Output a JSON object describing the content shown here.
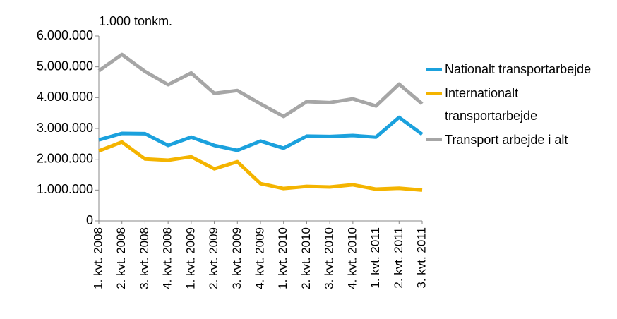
{
  "chart_data": {
    "type": "line",
    "y_axis_label": "1.000 tonkm.",
    "categories": [
      "1. kvt. 2008",
      "2. kvt. 2008",
      "3. kvt. 2008",
      "4. kvt. 2008",
      "1. kvt. 2009",
      "2. kvt. 2009",
      "3. kvt. 2009",
      "4. kvt. 2009",
      "1. kvt. 2010",
      "2. kvt. 2010",
      "3. kvt. 2010",
      "4. kvt. 2010",
      "1. kvt. 2011",
      "2. kvt. 2011",
      "3. kvt. 2011"
    ],
    "series": [
      {
        "name": "Nationalt transportarbejde",
        "color": "#1ba1dd",
        "values": [
          2630000,
          2840000,
          2830000,
          2450000,
          2720000,
          2450000,
          2290000,
          2590000,
          2360000,
          2750000,
          2740000,
          2770000,
          2720000,
          3360000,
          2810000
        ]
      },
      {
        "name": "Internationalt transportarbejde",
        "color": "#f4b400",
        "values": [
          2270000,
          2560000,
          2010000,
          1970000,
          2080000,
          1690000,
          1920000,
          1210000,
          1050000,
          1120000,
          1100000,
          1170000,
          1030000,
          1060000,
          1000000
        ]
      },
      {
        "name": "Transport arbejde i alt",
        "color": "#a6a6a6",
        "values": [
          4870000,
          5400000,
          4850000,
          4420000,
          4800000,
          4140000,
          4230000,
          3800000,
          3390000,
          3870000,
          3840000,
          3960000,
          3730000,
          4440000,
          3800000
        ]
      }
    ],
    "ylim": [
      0,
      6000000
    ],
    "yticks": [
      0,
      {
        "value": 1000000,
        "label": "1.000.000"
      },
      {
        "value": 2000000,
        "label": "2.000.000"
      },
      {
        "value": 3000000,
        "label": "3.000.000"
      },
      {
        "value": 4000000,
        "label": "4.000.000"
      },
      {
        "value": 5000000,
        "label": "5.000.000"
      },
      {
        "value": 6000000,
        "label": "6.000.000"
      }
    ],
    "grid": false,
    "legend": "right"
  }
}
